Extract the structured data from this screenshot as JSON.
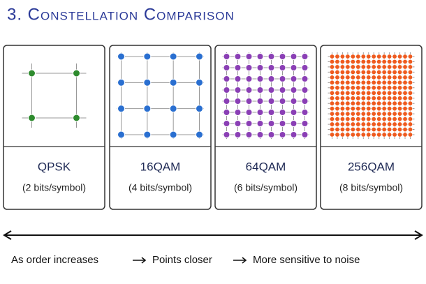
{
  "header": {
    "title": "3. Constellation Comparison"
  },
  "cards": [
    {
      "name": "QPSK",
      "bits": "(2 bits/symbol)",
      "color": "#2e8b2e"
    },
    {
      "name": "16QAM",
      "bits": "(4 bits/symbol)",
      "color": "#2a6fd0"
    },
    {
      "name": "64QAM",
      "bits": "(6 bits/symbol)",
      "color": "#8a3fb5"
    },
    {
      "name": "256QAM",
      "bits": "(8 bits/symbol)",
      "color": "#ef5a1e"
    }
  ],
  "caption": [
    "As order increases",
    "Points closer",
    "More sensitive to noise"
  ]
}
